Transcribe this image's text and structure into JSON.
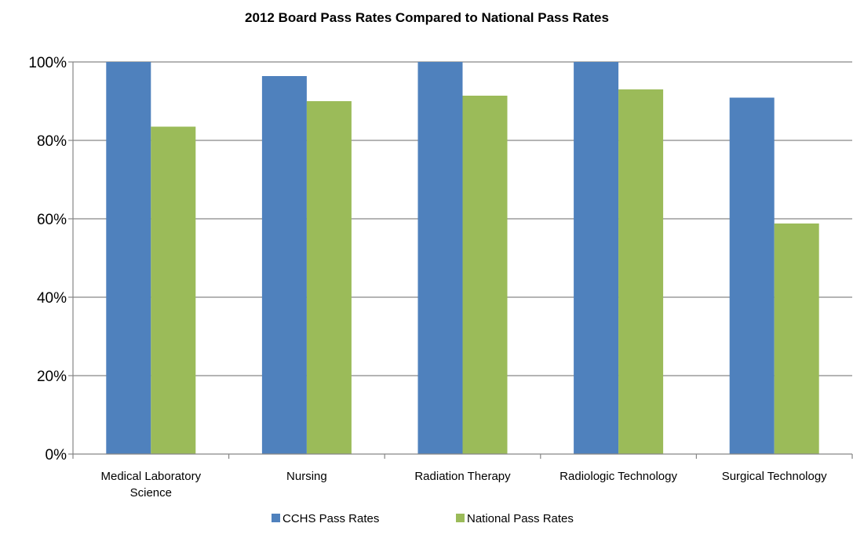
{
  "chart_data": {
    "type": "bar",
    "title": "2012 Board Pass Rates Compared to National Pass Rates",
    "xlabel": "",
    "ylabel": "",
    "categories": [
      "Medical Laboratory Science",
      "Nursing",
      "Radiation Therapy",
      "Radiologic Technology",
      "Surgical Technology"
    ],
    "series": [
      {
        "name": "CCHS Pass Rates",
        "color": "#4F81BD",
        "values": [
          100,
          96.4,
          100,
          100,
          90.9
        ]
      },
      {
        "name": "National Pass Rates",
        "color": "#9BBB59",
        "values": [
          83.5,
          90.0,
          91.4,
          93.0,
          58.8
        ]
      }
    ],
    "ylim": [
      0,
      100
    ],
    "yticks": [
      0,
      20,
      40,
      60,
      80,
      100
    ],
    "ytick_labels": [
      "0%",
      "20%",
      "40%",
      "60%",
      "80%",
      "100%"
    ],
    "grid": true,
    "legend_position": "bottom"
  }
}
